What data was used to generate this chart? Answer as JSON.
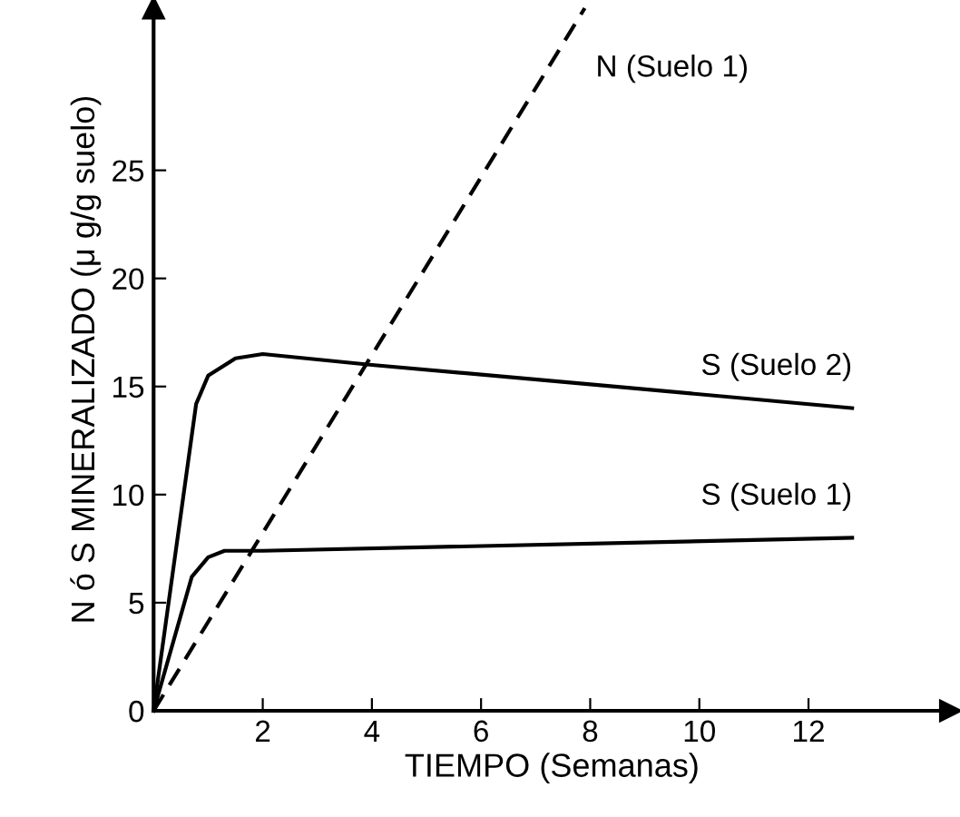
{
  "chart_data": {
    "type": "line",
    "xlabel": "TIEMPO (Semanas)",
    "ylabel": "N ó S MINERALIZADO (μ g/g suelo)",
    "xlim": [
      0,
      14.6
    ],
    "ylim": [
      0,
      32.5
    ],
    "xticks": [
      2,
      4,
      6,
      8,
      10,
      12
    ],
    "yticks": [
      0,
      5,
      10,
      15,
      20,
      25
    ],
    "grid": false,
    "legend": false,
    "marker": "none",
    "series": [
      {
        "name": "N (Suelo 1)",
        "color": "#000000",
        "line_style": "dashed",
        "x": [
          0,
          7.9
        ],
        "values": [
          0,
          32.5
        ]
      },
      {
        "name": "S (Suelo 2)",
        "color": "#000000",
        "line_style": "solid",
        "x": [
          0,
          0.78,
          1.0,
          1.5,
          2.0,
          4.0,
          8.0,
          12.8
        ],
        "values": [
          0,
          14.2,
          15.5,
          16.3,
          16.5,
          16.0,
          15.1,
          14.0
        ]
      },
      {
        "name": "S (Suelo 1)",
        "color": "#000000",
        "line_style": "solid",
        "x": [
          0,
          0.7,
          1.0,
          1.3,
          2.0,
          12.8
        ],
        "values": [
          0,
          6.2,
          7.1,
          7.4,
          7.4,
          8.0
        ]
      }
    ]
  }
}
